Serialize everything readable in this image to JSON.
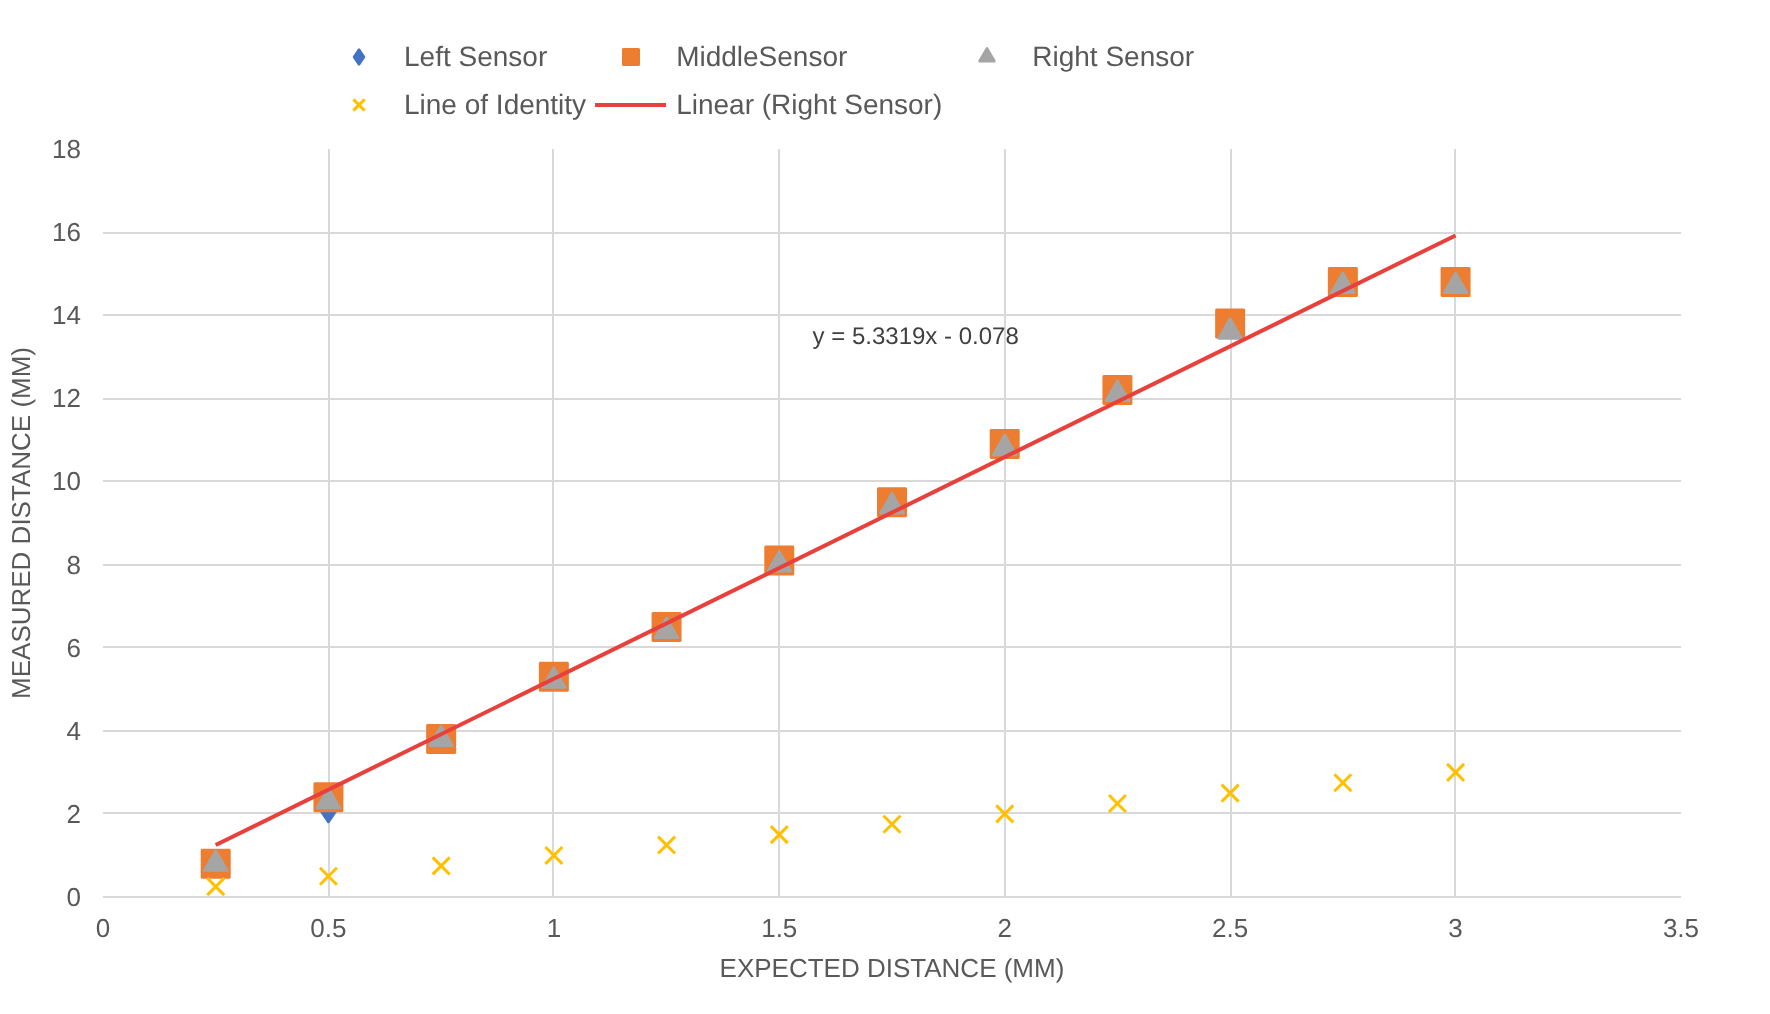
{
  "chart_data": {
    "type": "scatter",
    "xlabel": "EXPECTED DISTANCE (MM)",
    "ylabel": "MEASURED DISTANCE (MM)",
    "xlim": [
      0,
      3.5
    ],
    "xticks": [
      0,
      0.5,
      1,
      1.5,
      2,
      2.5,
      3,
      3.5
    ],
    "ylim": [
      0,
      18
    ],
    "yticks": [
      0,
      2,
      4,
      6,
      8,
      10,
      12,
      14,
      16,
      18
    ],
    "grid": true,
    "legend": "top",
    "x": [
      0.25,
      0.5,
      0.75,
      1,
      1.25,
      1.5,
      1.75,
      2,
      2.25,
      2.5,
      2.75,
      3
    ],
    "series": [
      {
        "name": "Left Sensor",
        "color": "#4472c4",
        "marker": "diamond",
        "values": [
          null,
          2.1,
          null,
          null,
          null,
          null,
          null,
          null,
          null,
          null,
          null,
          null
        ]
      },
      {
        "name": "MiddleSensor",
        "color": "#ed7d31",
        "marker": "square",
        "values": [
          0.8,
          2.4,
          3.8,
          5.3,
          6.5,
          8.1,
          9.5,
          10.9,
          12.2,
          13.8,
          14.8,
          14.8
        ]
      },
      {
        "name": "Right Sensor",
        "color": "#a5a5a5",
        "marker": "triangle",
        "values": [
          0.8,
          2.3,
          3.8,
          5.2,
          6.4,
          8.0,
          9.4,
          10.8,
          12.1,
          13.6,
          14.7,
          14.7
        ]
      },
      {
        "name": "Line of Identity",
        "color": "#ffc000",
        "marker": "cross",
        "values": [
          0.25,
          0.5,
          0.75,
          1,
          1.25,
          1.5,
          1.75,
          2,
          2.25,
          2.5,
          2.75,
          3
        ]
      },
      {
        "name": "Linear (Right Sensor)",
        "type": "line",
        "color": "#e8413c",
        "x": [
          0.25,
          3
        ],
        "values": [
          1.25,
          15.92
        ]
      }
    ],
    "annotations": [
      "y = 5.3319x - 0.078"
    ]
  }
}
